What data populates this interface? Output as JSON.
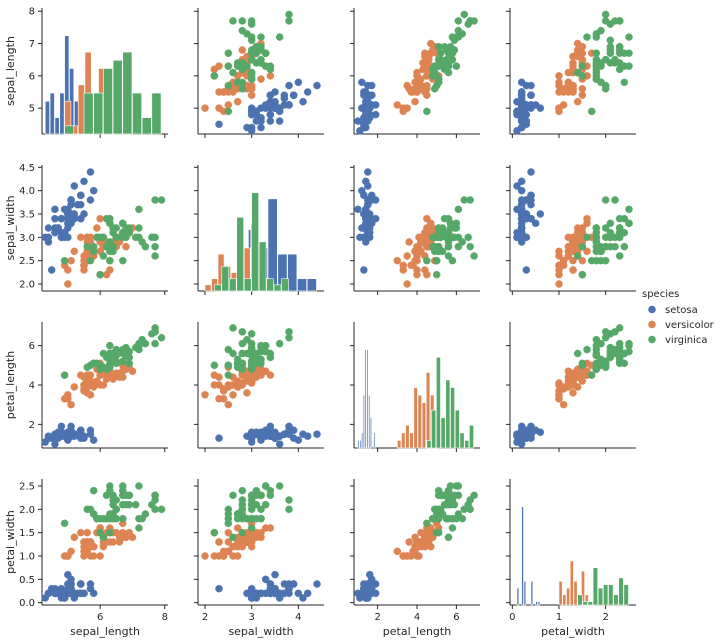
{
  "chart_data": {
    "type": "scatter",
    "variables": [
      "sepal_length",
      "sepal_width",
      "petal_length",
      "petal_width"
    ],
    "diagonal": "histogram",
    "legend": {
      "title": "species",
      "placement": "right",
      "entries": [
        "setosa",
        "versicolor",
        "virginica"
      ]
    },
    "colors": {
      "setosa": "#4c72b0",
      "versicolor": "#dd8452",
      "virginica": "#55a868"
    },
    "axes": {
      "sepal_length": {
        "range": [
          4.2,
          8.1
        ],
        "ticks": [
          6,
          8
        ],
        "row_ticks": [
          5,
          6,
          7,
          8
        ]
      },
      "sepal_width": {
        "range": [
          1.85,
          4.55
        ],
        "ticks": [
          2,
          3,
          4
        ],
        "row_ticks": [
          2.0,
          2.5,
          3.0,
          3.5,
          4.0,
          4.5
        ]
      },
      "petal_length": {
        "range": [
          0.8,
          7.2
        ],
        "ticks": [
          2,
          4,
          6
        ],
        "row_ticks": [
          2,
          4,
          6
        ]
      },
      "petal_width": {
        "range": [
          -0.05,
          2.65
        ],
        "ticks": [
          0,
          1,
          2
        ],
        "row_ticks": [
          0.0,
          0.5,
          1.0,
          1.5,
          2.0,
          2.5
        ]
      }
    },
    "series": [
      {
        "name": "setosa",
        "points": [
          [
            5.1,
            3.5,
            1.4,
            0.2
          ],
          [
            4.9,
            3.0,
            1.4,
            0.2
          ],
          [
            4.7,
            3.2,
            1.3,
            0.2
          ],
          [
            4.6,
            3.1,
            1.5,
            0.2
          ],
          [
            5.0,
            3.6,
            1.4,
            0.2
          ],
          [
            5.4,
            3.9,
            1.7,
            0.4
          ],
          [
            4.6,
            3.4,
            1.4,
            0.3
          ],
          [
            5.0,
            3.4,
            1.5,
            0.2
          ],
          [
            4.4,
            2.9,
            1.4,
            0.2
          ],
          [
            4.9,
            3.1,
            1.5,
            0.1
          ],
          [
            5.4,
            3.7,
            1.5,
            0.2
          ],
          [
            4.8,
            3.4,
            1.6,
            0.2
          ],
          [
            4.8,
            3.0,
            1.4,
            0.1
          ],
          [
            4.3,
            3.0,
            1.1,
            0.1
          ],
          [
            5.8,
            4.0,
            1.2,
            0.2
          ],
          [
            5.7,
            4.4,
            1.5,
            0.4
          ],
          [
            5.4,
            3.9,
            1.3,
            0.4
          ],
          [
            5.1,
            3.5,
            1.4,
            0.3
          ],
          [
            5.7,
            3.8,
            1.7,
            0.3
          ],
          [
            5.1,
            3.8,
            1.5,
            0.3
          ],
          [
            5.4,
            3.4,
            1.7,
            0.2
          ],
          [
            5.1,
            3.7,
            1.5,
            0.4
          ],
          [
            4.6,
            3.6,
            1.0,
            0.2
          ],
          [
            5.1,
            3.3,
            1.7,
            0.5
          ],
          [
            4.8,
            3.4,
            1.9,
            0.2
          ],
          [
            5.0,
            3.0,
            1.6,
            0.2
          ],
          [
            5.0,
            3.4,
            1.6,
            0.4
          ],
          [
            5.2,
            3.5,
            1.5,
            0.2
          ],
          [
            5.2,
            3.4,
            1.4,
            0.2
          ],
          [
            4.7,
            3.2,
            1.6,
            0.2
          ],
          [
            4.8,
            3.1,
            1.6,
            0.2
          ],
          [
            5.4,
            3.4,
            1.5,
            0.4
          ],
          [
            5.2,
            4.1,
            1.5,
            0.1
          ],
          [
            5.5,
            4.2,
            1.4,
            0.2
          ],
          [
            4.9,
            3.1,
            1.5,
            0.2
          ],
          [
            5.0,
            3.2,
            1.2,
            0.2
          ],
          [
            5.5,
            3.5,
            1.3,
            0.2
          ],
          [
            4.9,
            3.6,
            1.4,
            0.1
          ],
          [
            4.4,
            3.0,
            1.3,
            0.2
          ],
          [
            5.1,
            3.4,
            1.5,
            0.2
          ],
          [
            5.0,
            3.5,
            1.3,
            0.3
          ],
          [
            4.5,
            2.3,
            1.3,
            0.3
          ],
          [
            4.4,
            3.2,
            1.3,
            0.2
          ],
          [
            5.0,
            3.5,
            1.6,
            0.6
          ],
          [
            5.1,
            3.8,
            1.9,
            0.4
          ],
          [
            4.8,
            3.0,
            1.4,
            0.3
          ],
          [
            5.1,
            3.8,
            1.6,
            0.2
          ],
          [
            4.6,
            3.2,
            1.4,
            0.2
          ],
          [
            5.3,
            3.7,
            1.5,
            0.2
          ],
          [
            5.0,
            3.3,
            1.4,
            0.2
          ]
        ]
      },
      {
        "name": "versicolor",
        "points": [
          [
            7.0,
            3.2,
            4.7,
            1.4
          ],
          [
            6.4,
            3.2,
            4.5,
            1.5
          ],
          [
            6.9,
            3.1,
            4.9,
            1.5
          ],
          [
            5.5,
            2.3,
            4.0,
            1.3
          ],
          [
            6.5,
            2.8,
            4.6,
            1.5
          ],
          [
            5.7,
            2.8,
            4.5,
            1.3
          ],
          [
            6.3,
            3.3,
            4.7,
            1.6
          ],
          [
            4.9,
            2.4,
            3.3,
            1.0
          ],
          [
            6.6,
            2.9,
            4.6,
            1.3
          ],
          [
            5.2,
            2.7,
            3.9,
            1.4
          ],
          [
            5.0,
            2.0,
            3.5,
            1.0
          ],
          [
            5.9,
            3.0,
            4.2,
            1.5
          ],
          [
            6.0,
            2.2,
            4.0,
            1.0
          ],
          [
            6.1,
            2.9,
            4.7,
            1.4
          ],
          [
            5.6,
            2.9,
            3.6,
            1.3
          ],
          [
            6.7,
            3.1,
            4.4,
            1.4
          ],
          [
            5.6,
            3.0,
            4.5,
            1.5
          ],
          [
            5.8,
            2.7,
            4.1,
            1.0
          ],
          [
            6.2,
            2.2,
            4.5,
            1.5
          ],
          [
            5.6,
            2.5,
            3.9,
            1.1
          ],
          [
            5.9,
            3.2,
            4.8,
            1.8
          ],
          [
            6.1,
            2.8,
            4.0,
            1.3
          ],
          [
            6.3,
            2.5,
            4.9,
            1.5
          ],
          [
            6.1,
            2.8,
            4.7,
            1.2
          ],
          [
            6.4,
            2.9,
            4.3,
            1.3
          ],
          [
            6.6,
            3.0,
            4.4,
            1.4
          ],
          [
            6.8,
            2.8,
            4.8,
            1.4
          ],
          [
            6.7,
            3.0,
            5.0,
            1.7
          ],
          [
            6.0,
            2.9,
            4.5,
            1.5
          ],
          [
            5.7,
            2.6,
            3.5,
            1.0
          ],
          [
            5.5,
            2.4,
            3.8,
            1.1
          ],
          [
            5.5,
            2.4,
            3.7,
            1.0
          ],
          [
            5.8,
            2.7,
            3.9,
            1.2
          ],
          [
            6.0,
            2.7,
            5.1,
            1.6
          ],
          [
            5.4,
            3.0,
            4.5,
            1.5
          ],
          [
            6.0,
            3.4,
            4.5,
            1.6
          ],
          [
            6.7,
            3.1,
            4.7,
            1.5
          ],
          [
            6.3,
            2.3,
            4.4,
            1.3
          ],
          [
            5.6,
            3.0,
            4.1,
            1.3
          ],
          [
            5.5,
            2.5,
            4.0,
            1.3
          ],
          [
            5.5,
            2.6,
            4.4,
            1.2
          ],
          [
            6.1,
            3.0,
            4.6,
            1.4
          ],
          [
            5.8,
            2.6,
            4.0,
            1.2
          ],
          [
            5.0,
            2.3,
            3.3,
            1.0
          ],
          [
            5.6,
            2.7,
            4.2,
            1.3
          ],
          [
            5.7,
            3.0,
            4.2,
            1.2
          ],
          [
            5.7,
            2.9,
            4.2,
            1.3
          ],
          [
            6.2,
            2.9,
            4.3,
            1.3
          ],
          [
            5.1,
            2.5,
            3.0,
            1.1
          ],
          [
            5.7,
            2.8,
            4.1,
            1.3
          ]
        ]
      },
      {
        "name": "virginica",
        "points": [
          [
            6.3,
            3.3,
            6.0,
            2.5
          ],
          [
            5.8,
            2.7,
            5.1,
            1.9
          ],
          [
            7.1,
            3.0,
            5.9,
            2.1
          ],
          [
            6.3,
            2.9,
            5.6,
            1.8
          ],
          [
            6.5,
            3.0,
            5.8,
            2.2
          ],
          [
            7.6,
            3.0,
            6.6,
            2.1
          ],
          [
            4.9,
            2.5,
            4.5,
            1.7
          ],
          [
            7.3,
            2.9,
            6.3,
            1.8
          ],
          [
            6.7,
            2.5,
            5.8,
            1.8
          ],
          [
            7.2,
            3.6,
            6.1,
            2.5
          ],
          [
            6.5,
            3.2,
            5.1,
            2.0
          ],
          [
            6.4,
            2.7,
            5.3,
            1.9
          ],
          [
            6.8,
            3.0,
            5.5,
            2.1
          ],
          [
            5.7,
            2.5,
            5.0,
            2.0
          ],
          [
            5.8,
            2.8,
            5.1,
            2.4
          ],
          [
            6.4,
            3.2,
            5.3,
            2.3
          ],
          [
            6.5,
            3.0,
            5.5,
            1.8
          ],
          [
            7.7,
            3.8,
            6.7,
            2.2
          ],
          [
            7.7,
            2.6,
            6.9,
            2.3
          ],
          [
            6.0,
            2.2,
            5.0,
            1.5
          ],
          [
            6.9,
            3.2,
            5.7,
            2.3
          ],
          [
            5.6,
            2.8,
            4.9,
            2.0
          ],
          [
            7.7,
            2.8,
            6.7,
            2.0
          ],
          [
            6.3,
            2.7,
            4.9,
            1.8
          ],
          [
            6.7,
            3.3,
            5.7,
            2.1
          ],
          [
            7.2,
            3.2,
            6.0,
            1.8
          ],
          [
            6.2,
            2.8,
            4.8,
            1.8
          ],
          [
            6.1,
            3.0,
            4.9,
            1.8
          ],
          [
            6.4,
            2.8,
            5.6,
            2.1
          ],
          [
            7.2,
            3.0,
            5.8,
            1.6
          ],
          [
            7.4,
            2.8,
            6.1,
            1.9
          ],
          [
            7.9,
            3.8,
            6.4,
            2.0
          ],
          [
            6.4,
            2.8,
            5.6,
            2.2
          ],
          [
            6.3,
            2.8,
            5.1,
            1.5
          ],
          [
            6.1,
            2.6,
            5.6,
            1.4
          ],
          [
            7.7,
            3.0,
            6.1,
            2.3
          ],
          [
            6.3,
            3.4,
            5.6,
            2.4
          ],
          [
            6.4,
            3.1,
            5.5,
            1.8
          ],
          [
            6.0,
            3.0,
            4.8,
            1.8
          ],
          [
            6.9,
            3.1,
            5.4,
            2.1
          ],
          [
            6.7,
            3.1,
            5.6,
            2.4
          ],
          [
            6.9,
            3.1,
            5.1,
            2.3
          ],
          [
            5.8,
            2.7,
            5.1,
            1.9
          ],
          [
            6.8,
            3.2,
            5.9,
            2.3
          ],
          [
            6.7,
            3.3,
            5.7,
            2.5
          ],
          [
            6.7,
            3.0,
            5.2,
            2.3
          ],
          [
            6.3,
            2.5,
            5.0,
            1.9
          ],
          [
            6.5,
            3.0,
            5.2,
            2.0
          ],
          [
            6.2,
            3.4,
            5.4,
            2.3
          ],
          [
            5.9,
            3.0,
            5.1,
            1.8
          ]
        ]
      }
    ]
  }
}
